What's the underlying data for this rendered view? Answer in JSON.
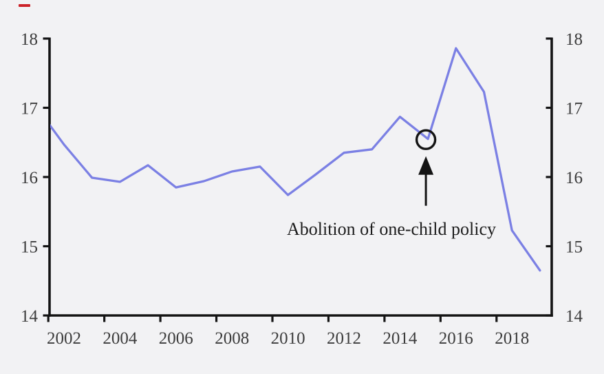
{
  "chart_data": {
    "type": "line",
    "title": "",
    "xlabel": "",
    "ylabel": "",
    "x": [
      2001,
      2002,
      2003,
      2004,
      2005,
      2006,
      2007,
      2008,
      2009,
      2010,
      2011,
      2012,
      2013,
      2014,
      2015,
      2016,
      2017,
      2018,
      2019
    ],
    "series": [
      {
        "name": "births-line",
        "values": [
          17.02,
          16.47,
          15.99,
          15.93,
          16.17,
          15.85,
          15.94,
          16.08,
          16.15,
          15.74,
          16.04,
          16.35,
          16.4,
          16.87,
          16.55,
          17.86,
          17.23,
          15.23,
          14.65
        ],
        "color": "#7b80e4"
      }
    ],
    "ylim": [
      14,
      18
    ],
    "y_ticks": [
      18,
      17,
      16,
      15,
      14
    ],
    "x_tick_years": [
      2002,
      2004,
      2006,
      2008,
      2010,
      2012,
      2014,
      2016,
      2018
    ],
    "dual_y_axis": true,
    "grid": false,
    "legend_position": "none",
    "annotation": {
      "text": "Abolition of one-child policy",
      "target_year": 2015,
      "target_value": 16.55,
      "marker": "hollow-circle-with-up-arrow"
    }
  },
  "colors": {
    "background": "#f2f2f4",
    "axis": "#141414",
    "line": "#7b80e4",
    "tick_text": "#3c3c3c",
    "annotation_text": "#1c1c1c",
    "red_dash": "#cc2329"
  }
}
